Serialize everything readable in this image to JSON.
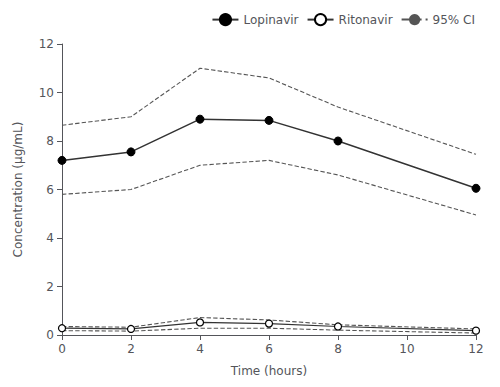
{
  "chart_data": {
    "type": "line",
    "xlabel": "Time (hours)",
    "ylabel": "Concentration (μg/mL)",
    "x": [
      0,
      2,
      4,
      6,
      8,
      12
    ],
    "series": [
      {
        "name": "Lopinavir",
        "color": "#333333",
        "marker": "filled_circle",
        "line_style": "solid",
        "values": [
          7.2,
          7.55,
          8.9,
          8.85,
          8.0,
          6.05
        ],
        "ci_upper": [
          8.65,
          9.0,
          11.0,
          10.6,
          9.4,
          7.45
        ],
        "ci_lower": [
          5.8,
          6.0,
          7.0,
          7.2,
          6.6,
          4.95
        ]
      },
      {
        "name": "Ritonavir",
        "color": "#333333",
        "marker": "open_circle",
        "line_style": "solid",
        "values": [
          0.28,
          0.25,
          0.52,
          0.47,
          0.35,
          0.18
        ],
        "ci_upper": [
          0.35,
          0.32,
          0.72,
          0.62,
          0.42,
          0.25
        ],
        "ci_lower": [
          0.18,
          0.16,
          0.28,
          0.28,
          0.2,
          0.08
        ]
      }
    ],
    "ci_label": "95% CI",
    "ci_color": "#555555",
    "ci_line_style": "dashed",
    "xlim": [
      0,
      12
    ],
    "ylim": [
      0,
      12
    ],
    "xticks": [
      0,
      2,
      4,
      6,
      8,
      10,
      12
    ],
    "yticks": [
      0,
      2,
      4,
      6,
      8,
      10,
      12
    ],
    "grid": false,
    "legend": "upper right"
  }
}
